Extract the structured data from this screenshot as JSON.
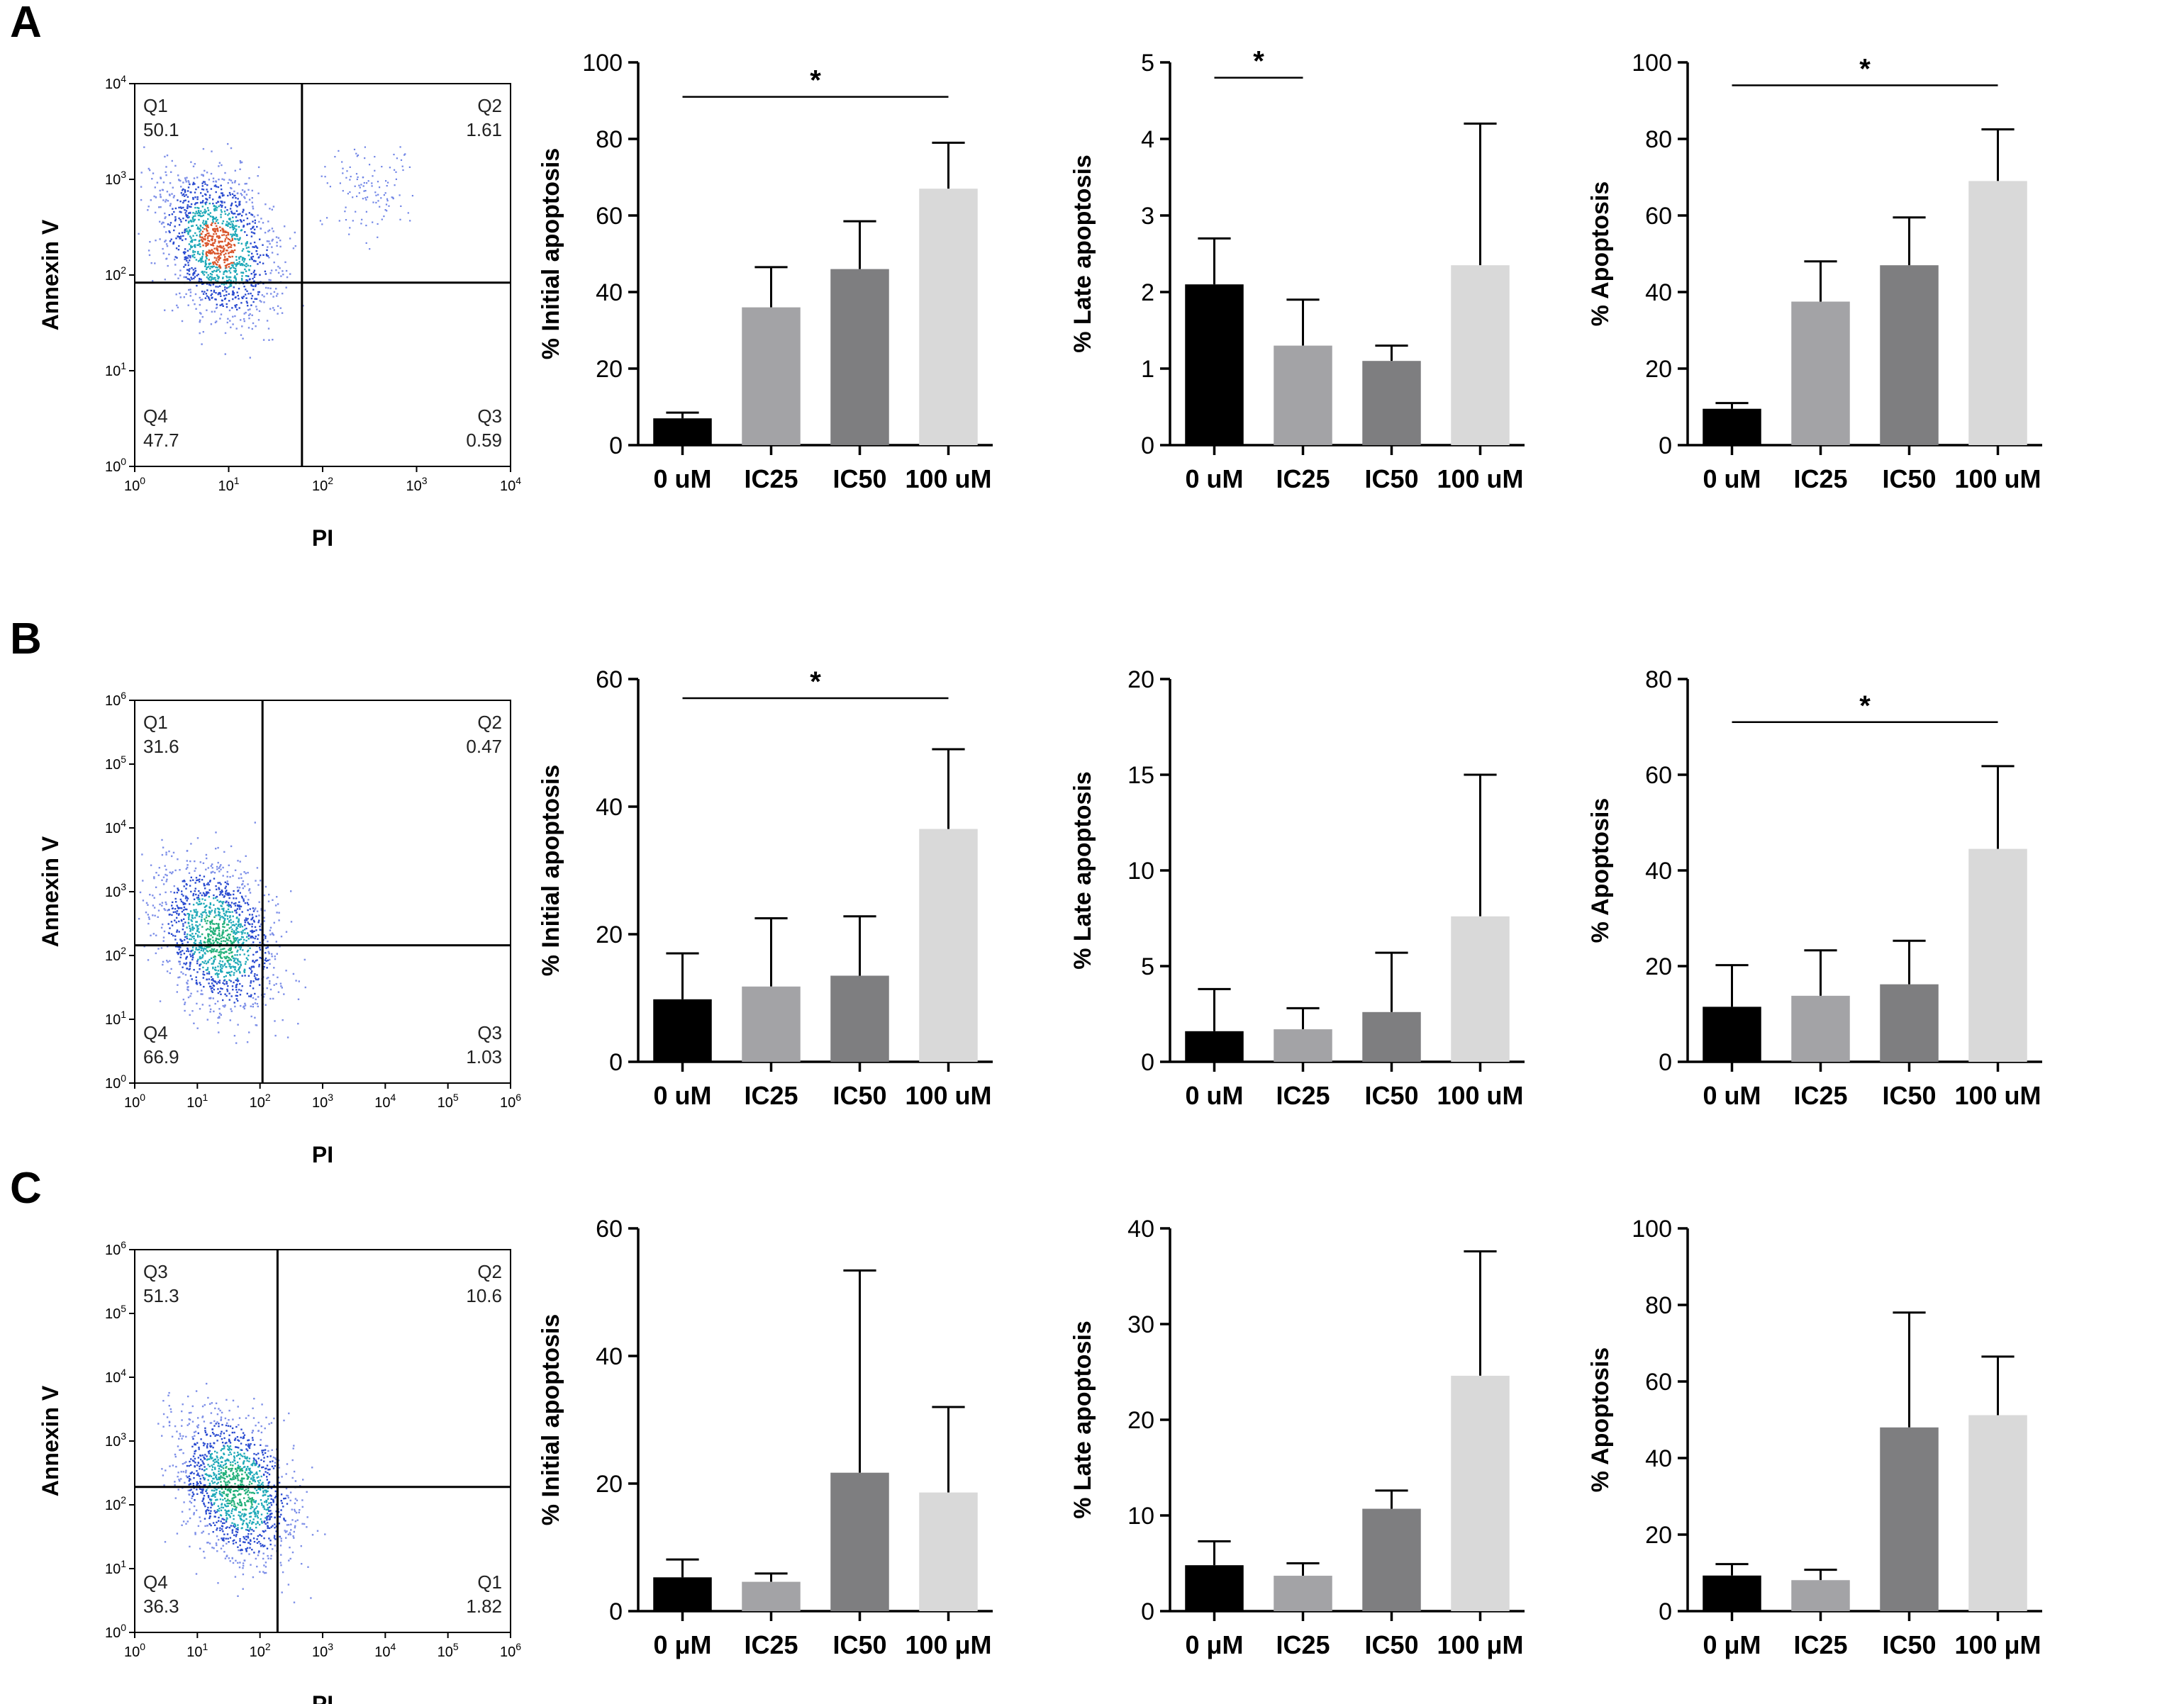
{
  "figure": {
    "panels": [
      {
        "label": "A",
        "flow": {
          "xlabel": "PI",
          "ylabel": "Annexin V",
          "y_exp": [
            "0",
            "1",
            "2",
            "3",
            "4"
          ],
          "x_exp": [
            "0",
            "1",
            "2",
            "3",
            "4"
          ],
          "quadrants": [
            {
              "name": "Q1",
              "value": "50.1",
              "pos": "top-left"
            },
            {
              "name": "Q2",
              "value": "1.61",
              "pos": "top-right"
            },
            {
              "name": "Q3",
              "value": "0.59",
              "pos": "bottom-right"
            },
            {
              "name": "Q4",
              "value": "47.7",
              "pos": "bottom-left"
            }
          ]
        },
        "bars": [
          {
            "categories": [
              "0 uM",
              "IC25",
              "IC50",
              "100 uM"
            ],
            "values": [
              7,
              36,
              46,
              67
            ],
            "errors": [
              8.5,
              46.5,
              58.5,
              79
            ],
            "ylabel": "% Initial apoptosis",
            "ylim": [
              0,
              100
            ],
            "yticks": [
              "0",
              "20",
              "40",
              "60",
              "80",
              "100"
            ],
            "sig": {
              "from": 0,
              "to": 3,
              "y": 91,
              "label": "*"
            }
          },
          {
            "categories": [
              "0 uM",
              "IC25",
              "IC50",
              "100 uM"
            ],
            "values": [
              2.1,
              1.3,
              1.1,
              2.35
            ],
            "errors": [
              2.7,
              1.9,
              1.3,
              4.2
            ],
            "ylabel": "% Late apoptosis",
            "ylim": [
              0,
              5
            ],
            "yticks": [
              "0",
              "1",
              "2",
              "3",
              "4",
              "5"
            ],
            "sig": {
              "from": 0,
              "to": 1,
              "y": 4.8,
              "label": "*"
            }
          },
          {
            "categories": [
              "0 uM",
              "IC25",
              "IC50",
              "100 uM"
            ],
            "values": [
              9.5,
              37.5,
              47,
              69
            ],
            "errors": [
              11,
              48,
              59.5,
              82.5
            ],
            "ylabel": "% Apoptosis",
            "ylim": [
              0,
              100
            ],
            "yticks": [
              "0",
              "20",
              "40",
              "60",
              "80",
              "100"
            ],
            "sig": {
              "from": 0,
              "to": 3,
              "y": 94,
              "label": "*"
            }
          }
        ]
      },
      {
        "label": "B",
        "flow": {
          "xlabel": "PI",
          "ylabel": "Annexin V",
          "y_exp": [
            "0",
            "1",
            "2",
            "3",
            "4",
            "5",
            "6"
          ],
          "x_exp": [
            "0",
            "1",
            "2",
            "3",
            "4",
            "5",
            "6"
          ],
          "quadrants": [
            {
              "name": "Q1",
              "value": "31.6",
              "pos": "top-left"
            },
            {
              "name": "Q2",
              "value": "0.47",
              "pos": "top-right"
            },
            {
              "name": "Q3",
              "value": "1.03",
              "pos": "bottom-right"
            },
            {
              "name": "Q4",
              "value": "66.9",
              "pos": "bottom-left"
            }
          ]
        },
        "bars": [
          {
            "categories": [
              "0 uM",
              "IC25",
              "IC50",
              "100 uM"
            ],
            "values": [
              9.8,
              11.8,
              13.5,
              36.5
            ],
            "errors": [
              17,
              22.5,
              22.8,
              49
            ],
            "ylabel": "% Initial apoptosis",
            "ylim": [
              0,
              60
            ],
            "yticks": [
              "0",
              "20",
              "40",
              "60"
            ],
            "sig": {
              "from": 0,
              "to": 3,
              "y": 57,
              "label": "*"
            }
          },
          {
            "categories": [
              "0 uM",
              "IC25",
              "IC50",
              "100 uM"
            ],
            "values": [
              1.6,
              1.7,
              2.6,
              7.6
            ],
            "errors": [
              3.8,
              2.8,
              5.7,
              15
            ],
            "ylabel": "% Late apoptosis",
            "ylim": [
              0,
              20
            ],
            "yticks": [
              "0",
              "5",
              "10",
              "15",
              "20"
            ],
            "sig": null
          },
          {
            "categories": [
              "0 uM",
              "IC25",
              "IC50",
              "100 uM"
            ],
            "values": [
              11.5,
              13.8,
              16.2,
              44.5
            ],
            "errors": [
              20.2,
              23.3,
              25.3,
              61.8
            ],
            "ylabel": "% Apoptosis",
            "ylim": [
              0,
              80
            ],
            "yticks": [
              "0",
              "20",
              "40",
              "60",
              "80"
            ],
            "sig": {
              "from": 0,
              "to": 3,
              "y": 71,
              "label": "*"
            }
          }
        ]
      },
      {
        "label": "C",
        "flow": {
          "xlabel": "PI",
          "ylabel": "Annexin V",
          "y_exp": [
            "0",
            "1",
            "2",
            "3",
            "4",
            "5",
            "6"
          ],
          "x_exp": [
            "0",
            "1",
            "2",
            "3",
            "4",
            "5",
            "6"
          ],
          "quadrants": [
            {
              "name": "Q3",
              "value": "51.3",
              "pos": "top-left"
            },
            {
              "name": "Q2",
              "value": "10.6",
              "pos": "top-right"
            },
            {
              "name": "Q1",
              "value": "1.82",
              "pos": "bottom-right"
            },
            {
              "name": "Q4",
              "value": "36.3",
              "pos": "bottom-left"
            }
          ]
        },
        "bars": [
          {
            "categories": [
              "0 μM",
              "IC25",
              "IC50",
              "100 μM"
            ],
            "values": [
              5.3,
              4.6,
              21.7,
              18.6
            ],
            "errors": [
              8.1,
              5.9,
              53.4,
              32
            ],
            "ylabel": "% Initial apoptosis",
            "ylim": [
              0,
              60
            ],
            "yticks": [
              "0",
              "20",
              "40",
              "60"
            ],
            "sig": null
          },
          {
            "categories": [
              "0 μM",
              "IC25",
              "IC50",
              "100 μM"
            ],
            "values": [
              4.8,
              3.7,
              10.7,
              24.6
            ],
            "errors": [
              7.3,
              5,
              12.6,
              37.6
            ],
            "ylabel": "% Late apoptosis",
            "ylim": [
              0,
              40
            ],
            "yticks": [
              "0",
              "10",
              "20",
              "30",
              "40"
            ],
            "sig": null
          },
          {
            "categories": [
              "0 μM",
              "IC25",
              "IC50",
              "100 μM"
            ],
            "values": [
              9.3,
              8.1,
              48,
              51.2
            ],
            "errors": [
              12.3,
              10.8,
              78,
              66.5
            ],
            "ylabel": "% Apoptosis",
            "ylim": [
              0,
              100
            ],
            "yticks": [
              "0",
              "20",
              "40",
              "60",
              "80",
              "100"
            ],
            "sig": null
          }
        ]
      }
    ],
    "bar_colors": [
      "#000000",
      "#a3a3a6",
      "#7e7e80",
      "#d9d9d9"
    ]
  },
  "chart_data": [
    {
      "type": "bar",
      "panel": "A",
      "title": "",
      "xlabel": "",
      "ylabel": "% Initial apoptosis",
      "categories": [
        "0 uM",
        "IC25",
        "IC50",
        "100 uM"
      ],
      "values": [
        7,
        36,
        46,
        67
      ],
      "error_upper": [
        8.5,
        46.5,
        58.5,
        79
      ],
      "ylim": [
        0,
        100
      ]
    },
    {
      "type": "bar",
      "panel": "A",
      "title": "",
      "xlabel": "",
      "ylabel": "% Late apoptosis",
      "categories": [
        "0 uM",
        "IC25",
        "IC50",
        "100 uM"
      ],
      "values": [
        2.1,
        1.3,
        1.1,
        2.35
      ],
      "error_upper": [
        2.7,
        1.9,
        1.3,
        4.2
      ],
      "ylim": [
        0,
        5
      ]
    },
    {
      "type": "bar",
      "panel": "A",
      "title": "",
      "xlabel": "",
      "ylabel": "% Apoptosis",
      "categories": [
        "0 uM",
        "IC25",
        "IC50",
        "100 uM"
      ],
      "values": [
        9.5,
        37.5,
        47,
        69
      ],
      "error_upper": [
        11,
        48,
        59.5,
        82.5
      ],
      "ylim": [
        0,
        100
      ]
    },
    {
      "type": "bar",
      "panel": "B",
      "title": "",
      "xlabel": "",
      "ylabel": "% Initial apoptosis",
      "categories": [
        "0 uM",
        "IC25",
        "IC50",
        "100 uM"
      ],
      "values": [
        9.8,
        11.8,
        13.5,
        36.5
      ],
      "error_upper": [
        17,
        22.5,
        22.8,
        49
      ],
      "ylim": [
        0,
        60
      ]
    },
    {
      "type": "bar",
      "panel": "B",
      "title": "",
      "xlabel": "",
      "ylabel": "% Late apoptosis",
      "categories": [
        "0 uM",
        "IC25",
        "IC50",
        "100 uM"
      ],
      "values": [
        1.6,
        1.7,
        2.6,
        7.6
      ],
      "error_upper": [
        3.8,
        2.8,
        5.7,
        15
      ],
      "ylim": [
        0,
        20
      ]
    },
    {
      "type": "bar",
      "panel": "B",
      "title": "",
      "xlabel": "",
      "ylabel": "% Apoptosis",
      "categories": [
        "0 uM",
        "IC25",
        "IC50",
        "100 uM"
      ],
      "values": [
        11.5,
        13.8,
        16.2,
        44.5
      ],
      "error_upper": [
        20.2,
        23.3,
        25.3,
        61.8
      ],
      "ylim": [
        0,
        80
      ]
    },
    {
      "type": "bar",
      "panel": "C",
      "title": "",
      "xlabel": "",
      "ylabel": "% Initial apoptosis",
      "categories": [
        "0 μM",
        "IC25",
        "IC50",
        "100 μM"
      ],
      "values": [
        5.3,
        4.6,
        21.7,
        18.6
      ],
      "error_upper": [
        8.1,
        5.9,
        53.4,
        32
      ],
      "ylim": [
        0,
        60
      ]
    },
    {
      "type": "bar",
      "panel": "C",
      "title": "",
      "xlabel": "",
      "ylabel": "% Late apoptosis",
      "categories": [
        "0 μM",
        "IC25",
        "IC50",
        "100 μM"
      ],
      "values": [
        4.8,
        3.7,
        10.7,
        24.6
      ],
      "error_upper": [
        7.3,
        5,
        12.6,
        37.6
      ],
      "ylim": [
        0,
        40
      ]
    },
    {
      "type": "bar",
      "panel": "C",
      "title": "",
      "xlabel": "",
      "ylabel": "% Apoptosis",
      "categories": [
        "0 μM",
        "IC25",
        "IC50",
        "100 μM"
      ],
      "values": [
        9.3,
        8.1,
        48,
        51.2
      ],
      "error_upper": [
        12.3,
        10.8,
        78,
        66.5
      ],
      "ylim": [
        0,
        100
      ]
    }
  ]
}
